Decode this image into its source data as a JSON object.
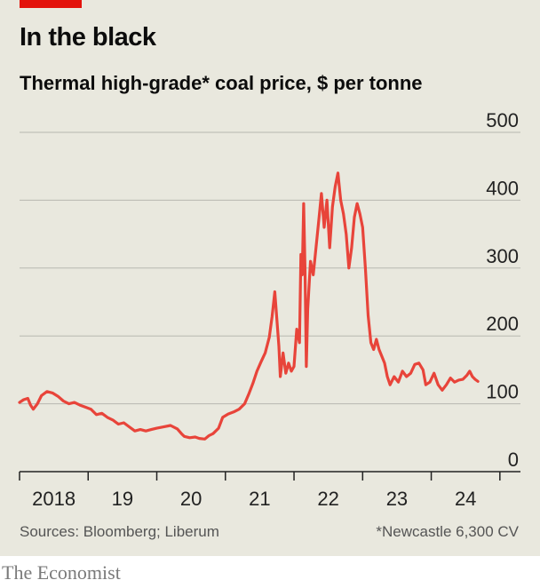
{
  "header": {
    "title": "In the black",
    "subtitle": "Thermal high-grade* coal price, $ per tonne"
  },
  "footer": {
    "sources": "Sources: Bloomberg; Liberum",
    "footnote": "*Newcastle 6,300 CV",
    "brand": "The Economist"
  },
  "colors": {
    "line": "#e8443a",
    "grid": "#b7b7b0",
    "panel": "#e9e8de",
    "tag": "#e3120b"
  },
  "chart_data": {
    "type": "line",
    "title": "In the black",
    "subtitle": "Thermal high-grade* coal price, $ per tonne",
    "y_axis_position": "right",
    "ylim": [
      0,
      500
    ],
    "y_ticks": [
      0,
      100,
      200,
      300,
      400,
      500
    ],
    "xlim": [
      2018.0,
      2025.3
    ],
    "x_ticks": [
      2018,
      2019,
      2020,
      2021,
      2022,
      2023,
      2024,
      2025
    ],
    "x_tick_labels": [
      {
        "year": 2018,
        "label": "2018"
      },
      {
        "year": 2019,
        "label": "19"
      },
      {
        "year": 2020,
        "label": "20"
      },
      {
        "year": 2021,
        "label": "21"
      },
      {
        "year": 2022,
        "label": "22"
      },
      {
        "year": 2023,
        "label": "23"
      },
      {
        "year": 2024,
        "label": "24"
      }
    ],
    "grid": true,
    "series": [
      {
        "points": [
          [
            2018.0,
            102
          ],
          [
            2018.06,
            106
          ],
          [
            2018.12,
            108
          ],
          [
            2018.16,
            98
          ],
          [
            2018.2,
            92
          ],
          [
            2018.26,
            100
          ],
          [
            2018.32,
            112
          ],
          [
            2018.4,
            118
          ],
          [
            2018.48,
            116
          ],
          [
            2018.56,
            111
          ],
          [
            2018.64,
            104
          ],
          [
            2018.72,
            100
          ],
          [
            2018.8,
            102
          ],
          [
            2018.88,
            98
          ],
          [
            2018.96,
            95
          ],
          [
            2019.04,
            92
          ],
          [
            2019.12,
            84
          ],
          [
            2019.2,
            86
          ],
          [
            2019.28,
            80
          ],
          [
            2019.36,
            76
          ],
          [
            2019.44,
            70
          ],
          [
            2019.52,
            72
          ],
          [
            2019.6,
            66
          ],
          [
            2019.68,
            60
          ],
          [
            2019.76,
            62
          ],
          [
            2019.84,
            60
          ],
          [
            2019.92,
            62
          ],
          [
            2020.0,
            64
          ],
          [
            2020.1,
            66
          ],
          [
            2020.2,
            68
          ],
          [
            2020.3,
            63
          ],
          [
            2020.36,
            56
          ],
          [
            2020.4,
            52
          ],
          [
            2020.48,
            50
          ],
          [
            2020.56,
            51
          ],
          [
            2020.62,
            49
          ],
          [
            2020.7,
            48
          ],
          [
            2020.76,
            53
          ],
          [
            2020.82,
            56
          ],
          [
            2020.9,
            64
          ],
          [
            2020.96,
            80
          ],
          [
            2021.04,
            85
          ],
          [
            2021.12,
            88
          ],
          [
            2021.2,
            92
          ],
          [
            2021.28,
            100
          ],
          [
            2021.34,
            114
          ],
          [
            2021.4,
            130
          ],
          [
            2021.46,
            148
          ],
          [
            2021.52,
            162
          ],
          [
            2021.58,
            175
          ],
          [
            2021.64,
            198
          ],
          [
            2021.68,
            228
          ],
          [
            2021.72,
            265
          ],
          [
            2021.75,
            225
          ],
          [
            2021.78,
            185
          ],
          [
            2021.8,
            140
          ],
          [
            2021.84,
            175
          ],
          [
            2021.88,
            145
          ],
          [
            2021.92,
            160
          ],
          [
            2021.96,
            148
          ],
          [
            2022.0,
            155
          ],
          [
            2022.04,
            210
          ],
          [
            2022.08,
            190
          ],
          [
            2022.1,
            320
          ],
          [
            2022.12,
            290
          ],
          [
            2022.14,
            395
          ],
          [
            2022.16,
            300
          ],
          [
            2022.18,
            155
          ],
          [
            2022.2,
            240
          ],
          [
            2022.24,
            310
          ],
          [
            2022.28,
            290
          ],
          [
            2022.32,
            330
          ],
          [
            2022.36,
            370
          ],
          [
            2022.4,
            410
          ],
          [
            2022.44,
            360
          ],
          [
            2022.48,
            400
          ],
          [
            2022.52,
            330
          ],
          [
            2022.56,
            390
          ],
          [
            2022.6,
            420
          ],
          [
            2022.64,
            440
          ],
          [
            2022.68,
            400
          ],
          [
            2022.72,
            380
          ],
          [
            2022.76,
            350
          ],
          [
            2022.8,
            300
          ],
          [
            2022.84,
            330
          ],
          [
            2022.88,
            375
          ],
          [
            2022.92,
            395
          ],
          [
            2022.96,
            380
          ],
          [
            2023.0,
            360
          ],
          [
            2023.04,
            300
          ],
          [
            2023.08,
            230
          ],
          [
            2023.12,
            190
          ],
          [
            2023.16,
            180
          ],
          [
            2023.2,
            195
          ],
          [
            2023.24,
            180
          ],
          [
            2023.28,
            170
          ],
          [
            2023.32,
            160
          ],
          [
            2023.36,
            140
          ],
          [
            2023.4,
            128
          ],
          [
            2023.46,
            140
          ],
          [
            2023.52,
            132
          ],
          [
            2023.58,
            148
          ],
          [
            2023.64,
            140
          ],
          [
            2023.7,
            145
          ],
          [
            2023.76,
            158
          ],
          [
            2023.82,
            160
          ],
          [
            2023.88,
            150
          ],
          [
            2023.92,
            128
          ],
          [
            2023.98,
            132
          ],
          [
            2024.04,
            145
          ],
          [
            2024.1,
            128
          ],
          [
            2024.16,
            120
          ],
          [
            2024.22,
            128
          ],
          [
            2024.28,
            138
          ],
          [
            2024.34,
            132
          ],
          [
            2024.4,
            135
          ],
          [
            2024.46,
            136
          ],
          [
            2024.52,
            142
          ],
          [
            2024.56,
            148
          ],
          [
            2024.6,
            140
          ],
          [
            2024.64,
            136
          ],
          [
            2024.68,
            133
          ]
        ]
      }
    ]
  }
}
